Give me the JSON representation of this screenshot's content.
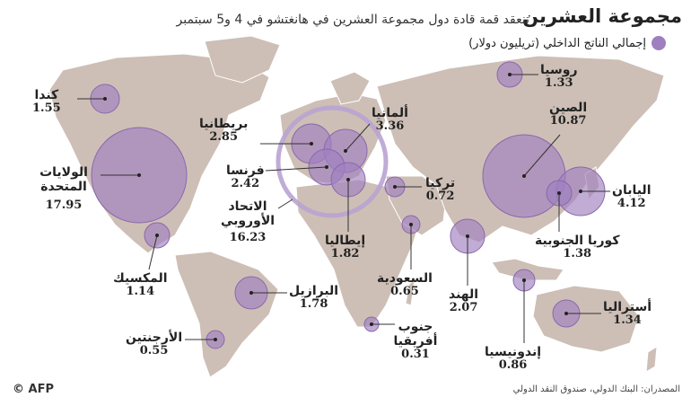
{
  "header": {
    "title": "مجموعة العشرين",
    "subtitle": "تنعقد قمة قادة دول مجموعة العشرين في هانغتشو في 4 و5 سبتمبر",
    "legend_label": "إجمالي الناتج الداخلي (تريليون دولار)"
  },
  "colors": {
    "land": "#cdbfb6",
    "bubble": "#a07fc0",
    "bubble_stroke": "#8a68ad",
    "ring": "#b9a3d1"
  },
  "countries": {
    "canada": {
      "name": "كندا",
      "gdp": "1.55"
    },
    "usa": {
      "name": "الولايات المتحدة",
      "gdp": "17.95"
    },
    "mexico": {
      "name": "المكسيك",
      "gdp": "1.14"
    },
    "brazil": {
      "name": "البرازيل",
      "gdp": "1.78"
    },
    "argentina": {
      "name": "الأرجنتين",
      "gdp": "0.55"
    },
    "uk": {
      "name": "بريطانيا",
      "gdp": "2.85"
    },
    "france": {
      "name": "فرنسا",
      "gdp": "2.42"
    },
    "eu": {
      "name": "الاتحاد الأوروبي",
      "gdp": "16.23"
    },
    "germany": {
      "name": "ألمانيا",
      "gdp": "3.36"
    },
    "italy": {
      "name": "إيطاليا",
      "gdp": "1.82"
    },
    "turkey": {
      "name": "تركيا",
      "gdp": "0.72"
    },
    "saudi": {
      "name": "السعودية",
      "gdp": "0.65"
    },
    "south_africa": {
      "name": "جنوب أفريقيا",
      "gdp": "0.31"
    },
    "india": {
      "name": "الهند",
      "gdp": "2.07"
    },
    "russia": {
      "name": "روسيا",
      "gdp": "1.33"
    },
    "china": {
      "name": "الصين",
      "gdp": "10.87"
    },
    "japan": {
      "name": "اليابان",
      "gdp": "4.12"
    },
    "korea": {
      "name": "كوريا الجنوبية",
      "gdp": "1.38"
    },
    "indonesia": {
      "name": "إندونيسيا",
      "gdp": "0.86"
    },
    "australia": {
      "name": "أستراليا",
      "gdp": "1.34"
    }
  },
  "footer": {
    "sources": "المصدران: البنك الدولي، صندوق النقد الدولي",
    "credit": "© AFP"
  }
}
